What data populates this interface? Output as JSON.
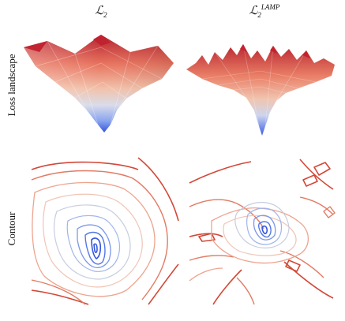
{
  "columns": [
    {
      "main": "ℒ",
      "sub": "2",
      "sup": ""
    },
    {
      "main": "ℒ",
      "sub": "2",
      "sup": "LAMP"
    }
  ],
  "rows": [
    {
      "label": "Loss landscape"
    },
    {
      "label": "Contour"
    }
  ],
  "colors": {
    "low": "#3b5ee8",
    "mid": "#d8dbe8",
    "high": "#c21c2b"
  }
}
